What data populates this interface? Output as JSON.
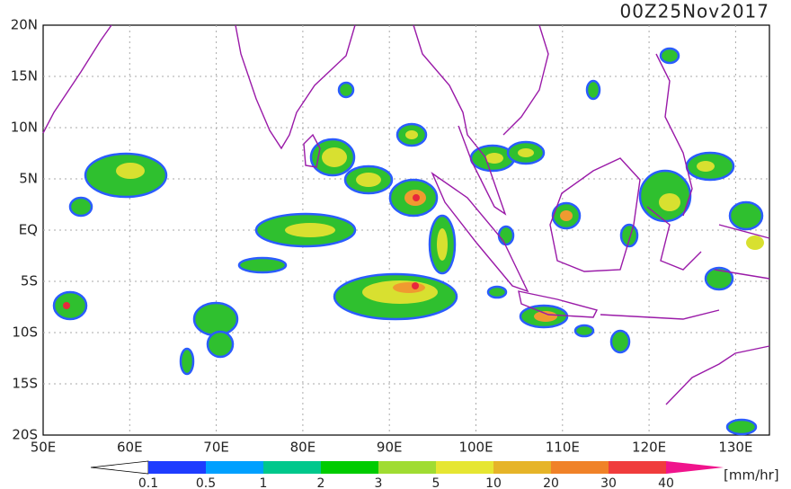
{
  "header": {
    "title": "00Z25Nov2017"
  },
  "map": {
    "lat_labels": [
      "20N",
      "15N",
      "10N",
      "5N",
      "EQ",
      "5S",
      "10S",
      "15S",
      "20S"
    ],
    "lon_labels": [
      "50E",
      "60E",
      "70E",
      "80E",
      "90E",
      "100E",
      "110E",
      "120E",
      "130E"
    ]
  },
  "colorbar": {
    "labels": [
      "0.1",
      "0.5",
      "1",
      "2",
      "3",
      "5",
      "10",
      "20",
      "30",
      "40"
    ],
    "unit": "[mm/hr]",
    "colors": [
      "#ffffff",
      "#1e3cff",
      "#00a0ff",
      "#00c88c",
      "#00cc00",
      "#a0dc32",
      "#e6e632",
      "#e6b428",
      "#f08228",
      "#f03c3c",
      "#f0148c"
    ]
  }
}
